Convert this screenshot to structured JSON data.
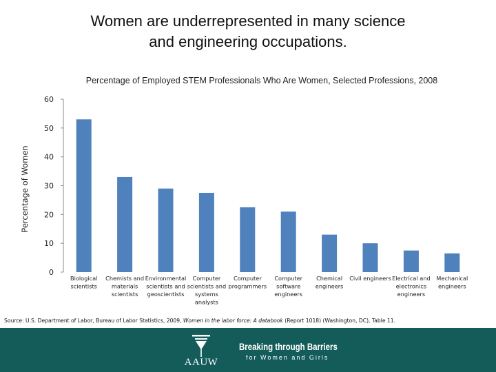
{
  "slide": {
    "title_line1": "Women are underrepresented in many science",
    "title_line2": "and engineering occupations."
  },
  "chart_data": {
    "type": "bar",
    "title": "Percentage of Employed STEM Professionals Who Are Women, Selected Professions, 2008",
    "ylabel": "Percentage of Women",
    "xlabel": "",
    "ylim": [
      0,
      60
    ],
    "yticks": [
      0,
      10,
      20,
      30,
      40,
      50,
      60
    ],
    "grid": false,
    "bar_color": "#4f81bd",
    "categories": [
      [
        "Biological",
        "scientists"
      ],
      [
        "Chemists and",
        "materials",
        "scientists"
      ],
      [
        "Environmental",
        "scientists and",
        "geoscientists"
      ],
      [
        "Computer",
        "scientists and",
        "systems",
        "analysts"
      ],
      [
        "Computer",
        "programmers"
      ],
      [
        "Computer",
        "software",
        "engineers"
      ],
      [
        "Chemical",
        "engineers"
      ],
      [
        "Civil engineers"
      ],
      [
        "Electrical and",
        "electronics",
        "engineers"
      ],
      [
        "Mechanical",
        "engineers"
      ]
    ],
    "values": [
      53,
      33,
      29,
      27.5,
      22.5,
      21,
      13,
      10,
      7.5,
      6.5
    ]
  },
  "source": {
    "prefix": "Source: U.S. Department of Labor, Bureau of Labor Statistics, 2009, ",
    "italic": "Women in the labor force: A databook",
    "suffix": " (Report 1018) (Washington, DC), Table 11."
  },
  "footer": {
    "logo_text": "AAUW",
    "tagline_line1": "Breaking through Barriers",
    "tagline_line2": "for Women and Girls",
    "background": "#145c5a"
  }
}
